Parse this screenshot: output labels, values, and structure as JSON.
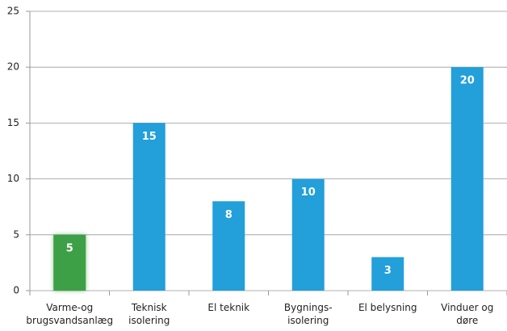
{
  "chart_data": {
    "type": "bar",
    "categories": [
      [
        "Varme-og",
        "brugsvandsanlæg"
      ],
      [
        "Teknisk",
        "isolering"
      ],
      [
        "El teknik"
      ],
      [
        "Bygnings-",
        "isolering"
      ],
      [
        "El belysning"
      ],
      [
        "Vinduer og",
        "døre"
      ]
    ],
    "values": [
      5,
      15,
      8,
      10,
      3,
      20
    ],
    "colors": [
      "#3ea046",
      "#239fda",
      "#239fda",
      "#239fda",
      "#239fda",
      "#239fda"
    ],
    "ylim": [
      0,
      25
    ],
    "yticks": [
      0,
      5,
      10,
      15,
      20,
      25
    ],
    "grid": true
  }
}
